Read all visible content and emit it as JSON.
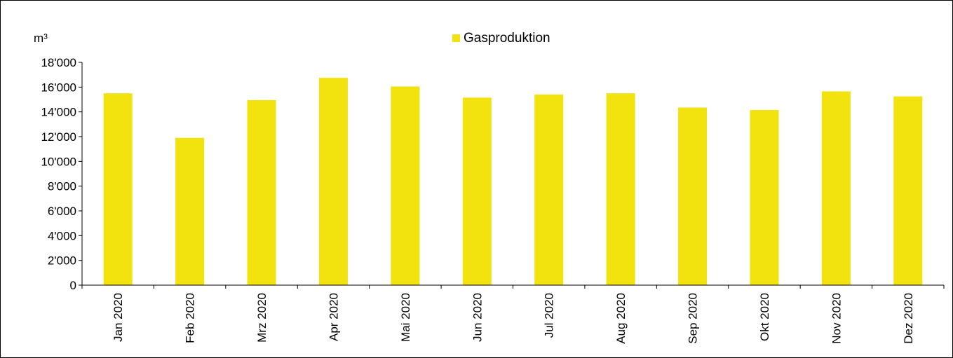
{
  "chart_data": {
    "type": "bar",
    "unit_label": "m³",
    "categories": [
      "Jan 2020",
      "Feb 2020",
      "Mrz 2020",
      "Apr 2020",
      "Mai 2020",
      "Jun 2020",
      "Jul 2020",
      "Aug 2020",
      "Sep 2020",
      "Okt 2020",
      "Nov 2020",
      "Dez 2020"
    ],
    "series": [
      {
        "name": "Gasproduktion",
        "color": "#f2e30f",
        "values": [
          15500,
          11900,
          14950,
          16750,
          16050,
          15150,
          15400,
          15500,
          14350,
          14150,
          15650,
          15250
        ]
      }
    ],
    "ylim": [
      0,
      18000
    ],
    "y_ticks": [
      "0",
      "2'000",
      "4'000",
      "6'000",
      "8'000",
      "10'000",
      "12'000",
      "14'000",
      "16'000",
      "18'000"
    ],
    "grid": false,
    "legend_position": "top-center"
  }
}
